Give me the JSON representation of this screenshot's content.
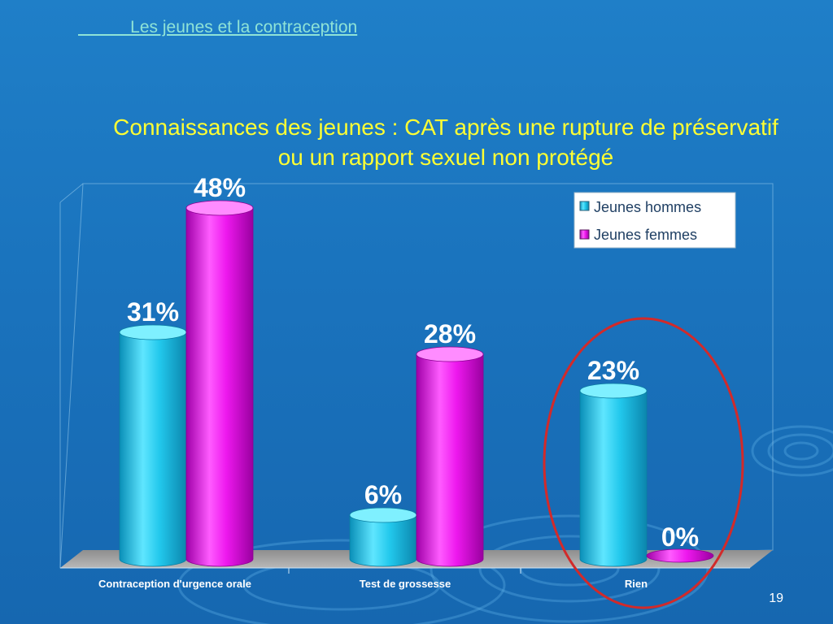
{
  "header": {
    "link_text": "           Les jeunes et la contraception"
  },
  "slide": {
    "title_line1": "Connaissances des jeunes : CAT après une rupture de préservatif",
    "title_line2": "ou un rapport sexuel non protégé",
    "page_number": "19"
  },
  "colors": {
    "jeunes_hommes": "#22c8ec",
    "jeunes_femmes": "#ee18ee",
    "highlight_circle": "#d22a2a",
    "title": "#ffff33"
  },
  "chart_data": {
    "type": "bar",
    "categories": [
      "Contraception d'urgence orale",
      "Test de grossesse",
      "Rien"
    ],
    "series": [
      {
        "name": "Jeunes hommes",
        "values": [
          31,
          6,
          23
        ],
        "labels": [
          "31%",
          "6%",
          "23%"
        ]
      },
      {
        "name": "Jeunes femmes",
        "values": [
          48,
          28,
          0
        ],
        "labels": [
          "48%",
          "28%",
          "0%"
        ]
      }
    ],
    "unit": "%",
    "ylim": [
      0,
      50
    ],
    "legend_position": "top-right",
    "grid": false,
    "highlighted_category": "Rien"
  }
}
